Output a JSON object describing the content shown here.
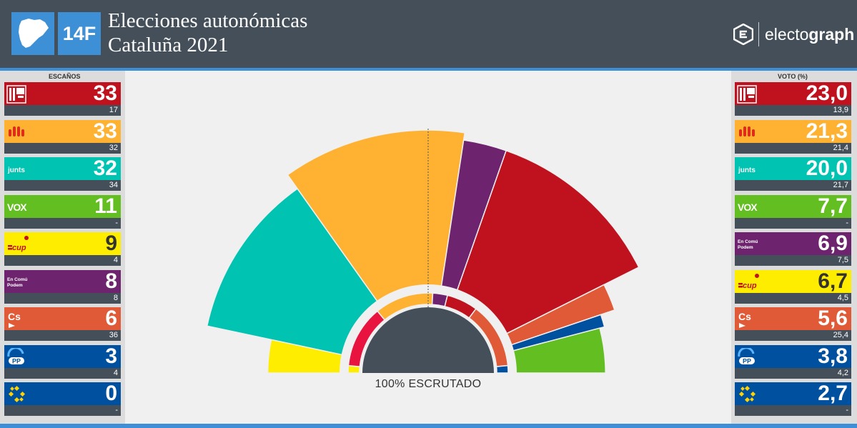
{
  "header": {
    "date_badge": "14F",
    "title_line1": "Elecciones autonómicas",
    "title_line2": "Cataluña 2021",
    "brand_part1": "electo",
    "brand_part2": "graph"
  },
  "seats_header": "ESCAÑOS",
  "votes_header": "VOTO (%)",
  "scrutiny_label": "100% ESCRUTADO",
  "colors": {
    "accent": "#3d8fd6",
    "header_bg": "#444f5a",
    "panel_bg": "#dcdcdc",
    "chart_bg": "#f0f0f0"
  },
  "seat_rows": [
    {
      "party_id": "psc",
      "logo_text": "",
      "seats": "33",
      "prev": "17",
      "color": "#c0111f",
      "dark": false
    },
    {
      "party_id": "erc",
      "logo_text": "",
      "seats": "33",
      "prev": "32",
      "color": "#ffb232",
      "dark": false
    },
    {
      "party_id": "junts",
      "logo_text": "junts",
      "seats": "32",
      "prev": "34",
      "color": "#00c3b2",
      "dark": false
    },
    {
      "party_id": "vox",
      "logo_text": "VOX",
      "seats": "11",
      "prev": "-",
      "color": "#63be21",
      "dark": false
    },
    {
      "party_id": "cup",
      "logo_text": "cup",
      "seats": "9",
      "prev": "4",
      "color": "#ffed00",
      "dark": true
    },
    {
      "party_id": "comuns",
      "logo_text": "En Comú Podem",
      "seats": "8",
      "prev": "8",
      "color": "#6e236e",
      "dark": false
    },
    {
      "party_id": "cs",
      "logo_text": "Cs",
      "seats": "6",
      "prev": "36",
      "color": "#e05a37",
      "dark": false
    },
    {
      "party_id": "pp",
      "logo_text": "PP",
      "seats": "3",
      "prev": "4",
      "color": "#0050a0",
      "dark": false
    },
    {
      "party_id": "pdecat",
      "logo_text": "",
      "seats": "0",
      "prev": "-",
      "color": "#0050a0",
      "dark": false
    }
  ],
  "vote_rows": [
    {
      "party_id": "psc",
      "logo_text": "",
      "vote": "23,0",
      "prev": "13,9",
      "color": "#c0111f",
      "dark": false
    },
    {
      "party_id": "erc",
      "logo_text": "",
      "vote": "21,3",
      "prev": "21,4",
      "color": "#ffb232",
      "dark": false
    },
    {
      "party_id": "junts",
      "logo_text": "junts",
      "vote": "20,0",
      "prev": "21,7",
      "color": "#00c3b2",
      "dark": false
    },
    {
      "party_id": "vox",
      "logo_text": "VOX",
      "vote": "7,7",
      "prev": "-",
      "color": "#63be21",
      "dark": false
    },
    {
      "party_id": "comuns",
      "logo_text": "En Comú Podem",
      "vote": "6,9",
      "prev": "7,5",
      "color": "#6e236e",
      "dark": false
    },
    {
      "party_id": "cup",
      "logo_text": "cup",
      "vote": "6,7",
      "prev": "4,5",
      "color": "#ffed00",
      "dark": true
    },
    {
      "party_id": "cs",
      "logo_text": "Cs",
      "vote": "5,6",
      "prev": "25,4",
      "color": "#e05a37",
      "dark": false
    },
    {
      "party_id": "pp",
      "logo_text": "PP",
      "vote": "3,8",
      "prev": "4,2",
      "color": "#0050a0",
      "dark": false
    },
    {
      "party_id": "pdecat",
      "logo_text": "",
      "vote": "2,7",
      "prev": "-",
      "color": "#0050a0",
      "dark": false
    }
  ],
  "chart_data": {
    "type": "pie",
    "shape": "hemicycle",
    "total_seats": 135,
    "majority_line": true,
    "outer_ring_order": [
      "CUP",
      "Junts",
      "ERC",
      "Comuns",
      "PSC",
      "Cs",
      "PP",
      "Vox"
    ],
    "outer_ring_seats": [
      9,
      32,
      33,
      8,
      33,
      6,
      3,
      11
    ],
    "outer_ring_colors": [
      "#ffed00",
      "#00c3b2",
      "#ffb232",
      "#6e236e",
      "#c0111f",
      "#e05a37",
      "#0050a0",
      "#63be21"
    ],
    "outer_ring_radius_scale": [
      0.66,
      0.93,
      1.0,
      0.97,
      0.97,
      0.81,
      0.75,
      0.73
    ],
    "inner_ring_seats_prev": [
      4,
      34,
      32,
      8,
      17,
      36,
      4,
      0
    ],
    "inner_ring_colors": [
      "#ffed00",
      "#e8133f",
      "#ffb232",
      "#6e236e",
      "#c0111f",
      "#e05a37",
      "#0050a0",
      "#63be21"
    ]
  }
}
